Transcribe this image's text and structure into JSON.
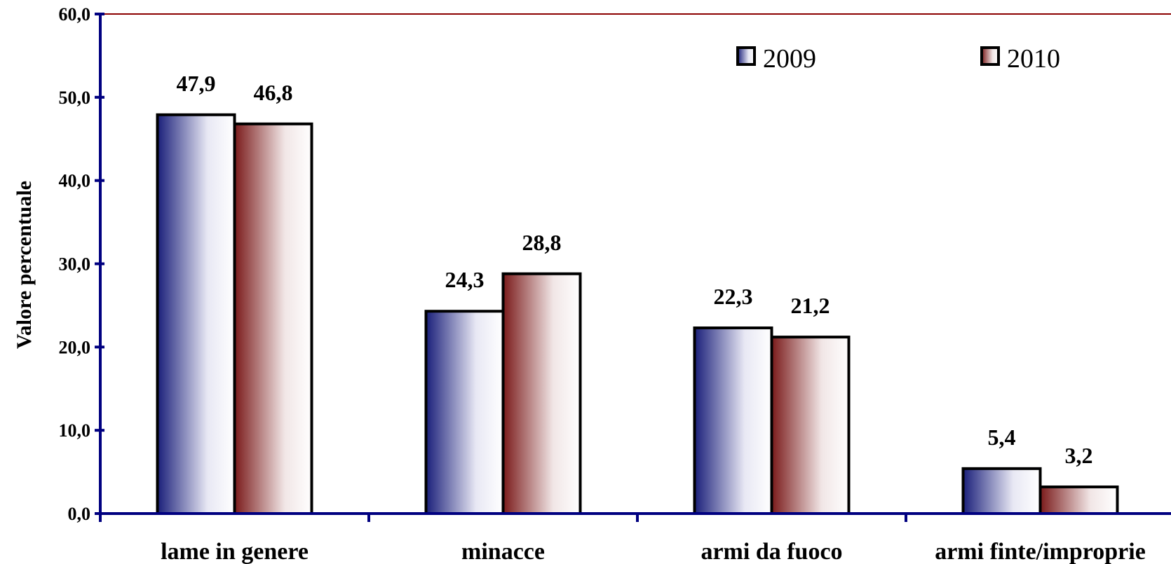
{
  "chart_data": {
    "type": "bar",
    "categories": [
      "lame in genere",
      "minacce",
      "armi da fuoco",
      "armi finte/improprie"
    ],
    "series": [
      {
        "name": "2009",
        "values": [
          47.9,
          24.3,
          22.3,
          5.4
        ],
        "labels": [
          "47,9",
          "24,3",
          "22,3",
          "5,4"
        ]
      },
      {
        "name": "2010",
        "values": [
          46.8,
          28.8,
          21.2,
          3.2
        ],
        "labels": [
          "46,8",
          "28,8",
          "21,2",
          "3,2"
        ]
      }
    ],
    "ylabel": "Valore percentuale",
    "xlabel": "",
    "ylim": [
      0,
      60
    ],
    "yticks": [
      0,
      10,
      20,
      30,
      40,
      50,
      60
    ],
    "ytick_labels": [
      "0,0",
      "10,0",
      "20,0",
      "30,0",
      "40,0",
      "50,0",
      "60,0"
    ],
    "legend_position": "top-right",
    "grid": false,
    "colors": {
      "series_2009": "#1a1f7a",
      "series_2010": "#7a1a1a",
      "axis": "#000080",
      "top_line": "#8b0000"
    }
  }
}
